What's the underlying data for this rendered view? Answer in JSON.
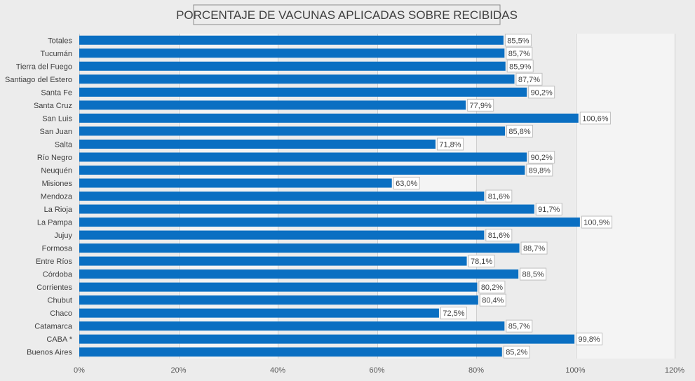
{
  "chart_data": {
    "type": "bar",
    "orientation": "horizontal",
    "title": "PORCENTAJE DE VACUNAS APLICADAS SOBRE RECIBIDAS",
    "categories": [
      "Totales",
      "Tucumán",
      "Tierra del Fuego",
      "Santiago del Estero",
      "Santa Fe",
      "Santa Cruz",
      "San Luis",
      "San Juan",
      "Salta",
      "Río Negro",
      "Neuquén",
      "Misiones",
      "Mendoza",
      "La Rioja",
      "La Pampa",
      "Jujuy",
      "Formosa",
      "Entre Ríos",
      "Córdoba",
      "Corrientes",
      "Chubut",
      "Chaco",
      "Catamarca",
      "CABA *",
      "Buenos Aires"
    ],
    "values": [
      85.5,
      85.7,
      85.9,
      87.7,
      90.2,
      77.9,
      100.6,
      85.8,
      71.8,
      90.2,
      89.8,
      63.0,
      81.6,
      91.7,
      100.9,
      81.6,
      88.7,
      78.1,
      88.5,
      80.2,
      80.4,
      72.5,
      85.7,
      99.8,
      85.2
    ],
    "data_labels": [
      "85,5%",
      "85,7%",
      "85,9%",
      "87,7%",
      "90,2%",
      "77,9%",
      "100,6%",
      "85,8%",
      "71,8%",
      "90,2%",
      "89,8%",
      "63,0%",
      "81,6%",
      "91,7%",
      "100,9%",
      "81,6%",
      "88,7%",
      "78,1%",
      "88,5%",
      "80,2%",
      "80,4%",
      "72,5%",
      "85,7%",
      "99,8%",
      "85,2%"
    ],
    "xlim": [
      0,
      120
    ],
    "x_ticks": [
      0,
      20,
      40,
      60,
      80,
      100,
      120
    ],
    "x_tick_labels": [
      "0%",
      "20%",
      "40%",
      "60%",
      "80%",
      "100%",
      "120%"
    ],
    "xlabel": "",
    "ylabel": "",
    "grid": true,
    "legend": "none",
    "colors": {
      "bar": "#0a6fc2",
      "background": "#ececec",
      "band": "#f4f4f4"
    }
  }
}
